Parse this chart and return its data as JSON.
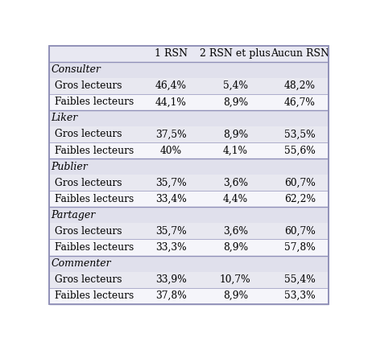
{
  "columns": [
    "1 RSN",
    "2 RSN et plus",
    "Aucun RSN"
  ],
  "sections": [
    {
      "header": "Consulter",
      "rows": [
        {
          "label": "Gros lecteurs",
          "values": [
            "46,4%",
            "5,4%",
            "48,2%"
          ]
        },
        {
          "label": "Faibles lecteurs",
          "values": [
            "44,1%",
            "8,9%",
            "46,7%"
          ]
        }
      ]
    },
    {
      "header": "Liker",
      "rows": [
        {
          "label": "Gros lecteurs",
          "values": [
            "37,5%",
            "8,9%",
            "53,5%"
          ]
        },
        {
          "label": "Faibles lecteurs",
          "values": [
            "40%",
            "4,1%",
            "55,6%"
          ]
        }
      ]
    },
    {
      "header": "Publier",
      "rows": [
        {
          "label": "Gros lecteurs",
          "values": [
            "35,7%",
            "3,6%",
            "60,7%"
          ]
        },
        {
          "label": "Faibles lecteurs",
          "values": [
            "33,4%",
            "4,4%",
            "62,2%"
          ]
        }
      ]
    },
    {
      "header": "Partager",
      "rows": [
        {
          "label": "Gros lecteurs",
          "values": [
            "35,7%",
            "3,6%",
            "60,7%"
          ]
        },
        {
          "label": "Faibles lecteurs",
          "values": [
            "33,3%",
            "8,9%",
            "57,8%"
          ]
        }
      ]
    },
    {
      "header": "Commenter",
      "rows": [
        {
          "label": "Gros lecteurs",
          "values": [
            "33,9%",
            "10,7%",
            "55,4%"
          ]
        },
        {
          "label": "Faibles lecteurs",
          "values": [
            "37,8%",
            "8,9%",
            "53,3%"
          ]
        }
      ]
    }
  ],
  "header_bg": "#e8e8f2",
  "row_bg_lavender": "#e8e8f0",
  "row_bg_white": "#f5f5fa",
  "section_header_bg": "#e0e0ec",
  "border_color": "#9090b8",
  "text_color": "#000000",
  "header_font_size": 9.0,
  "row_font_size": 8.8,
  "section_font_size": 9.0,
  "fig_width": 4.57,
  "fig_height": 4.3,
  "dpi": 100
}
